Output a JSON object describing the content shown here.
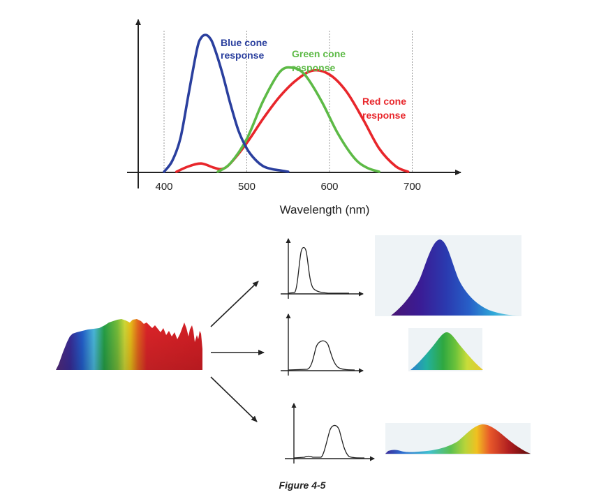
{
  "figure": {
    "caption": "Figure 4-5"
  },
  "chart_data": {
    "type": "line",
    "title": "",
    "xlabel": "Wavelength (nm)",
    "ylabel": "",
    "xlim": [
      370,
      760
    ],
    "x_ticks": [
      "400",
      "500",
      "600",
      "700"
    ],
    "grid": "vertical dotted lines at 400, 500, 600, 700",
    "legend": "none (direct labels)",
    "series": [
      {
        "name": "Blue cone response",
        "label_lines": [
          "Blue cone",
          "response"
        ],
        "color": "#2a3f9e",
        "x": [
          400,
          410,
          420,
          430,
          440,
          445,
          450,
          455,
          460,
          470,
          480,
          490,
          500,
          510,
          520,
          530,
          540,
          550
        ],
        "y": [
          0.0,
          0.08,
          0.25,
          0.58,
          0.9,
          0.98,
          1.0,
          0.98,
          0.92,
          0.73,
          0.5,
          0.3,
          0.17,
          0.09,
          0.04,
          0.02,
          0.01,
          0.0
        ]
      },
      {
        "name": "Green cone response",
        "label_lines": [
          "Green cone",
          "response"
        ],
        "color": "#5dba46",
        "x": [
          465,
          480,
          500,
          520,
          540,
          555,
          570,
          590,
          610,
          630,
          645,
          660
        ],
        "y": [
          0.0,
          0.06,
          0.24,
          0.52,
          0.73,
          0.76,
          0.71,
          0.52,
          0.28,
          0.1,
          0.03,
          0.0
        ]
      },
      {
        "name": "Red cone response",
        "label_lines": [
          "Red cone",
          "response"
        ],
        "color": "#e8262b",
        "x": [
          415,
          430,
          445,
          460,
          470,
          480,
          500,
          520,
          540,
          560,
          580,
          600,
          620,
          640,
          660,
          680,
          695
        ],
        "y": [
          0.0,
          0.04,
          0.06,
          0.03,
          0.02,
          0.06,
          0.21,
          0.39,
          0.55,
          0.67,
          0.74,
          0.71,
          0.59,
          0.39,
          0.17,
          0.04,
          0.0
        ]
      }
    ]
  },
  "palette": {
    "blue": "#2a3f9e",
    "green": "#5dba46",
    "red": "#e8262b",
    "axis": "#222222"
  },
  "icons": {
    "arrows": [
      "arrow-up-right-icon",
      "arrow-right-icon",
      "arrow-down-right-icon"
    ]
  }
}
